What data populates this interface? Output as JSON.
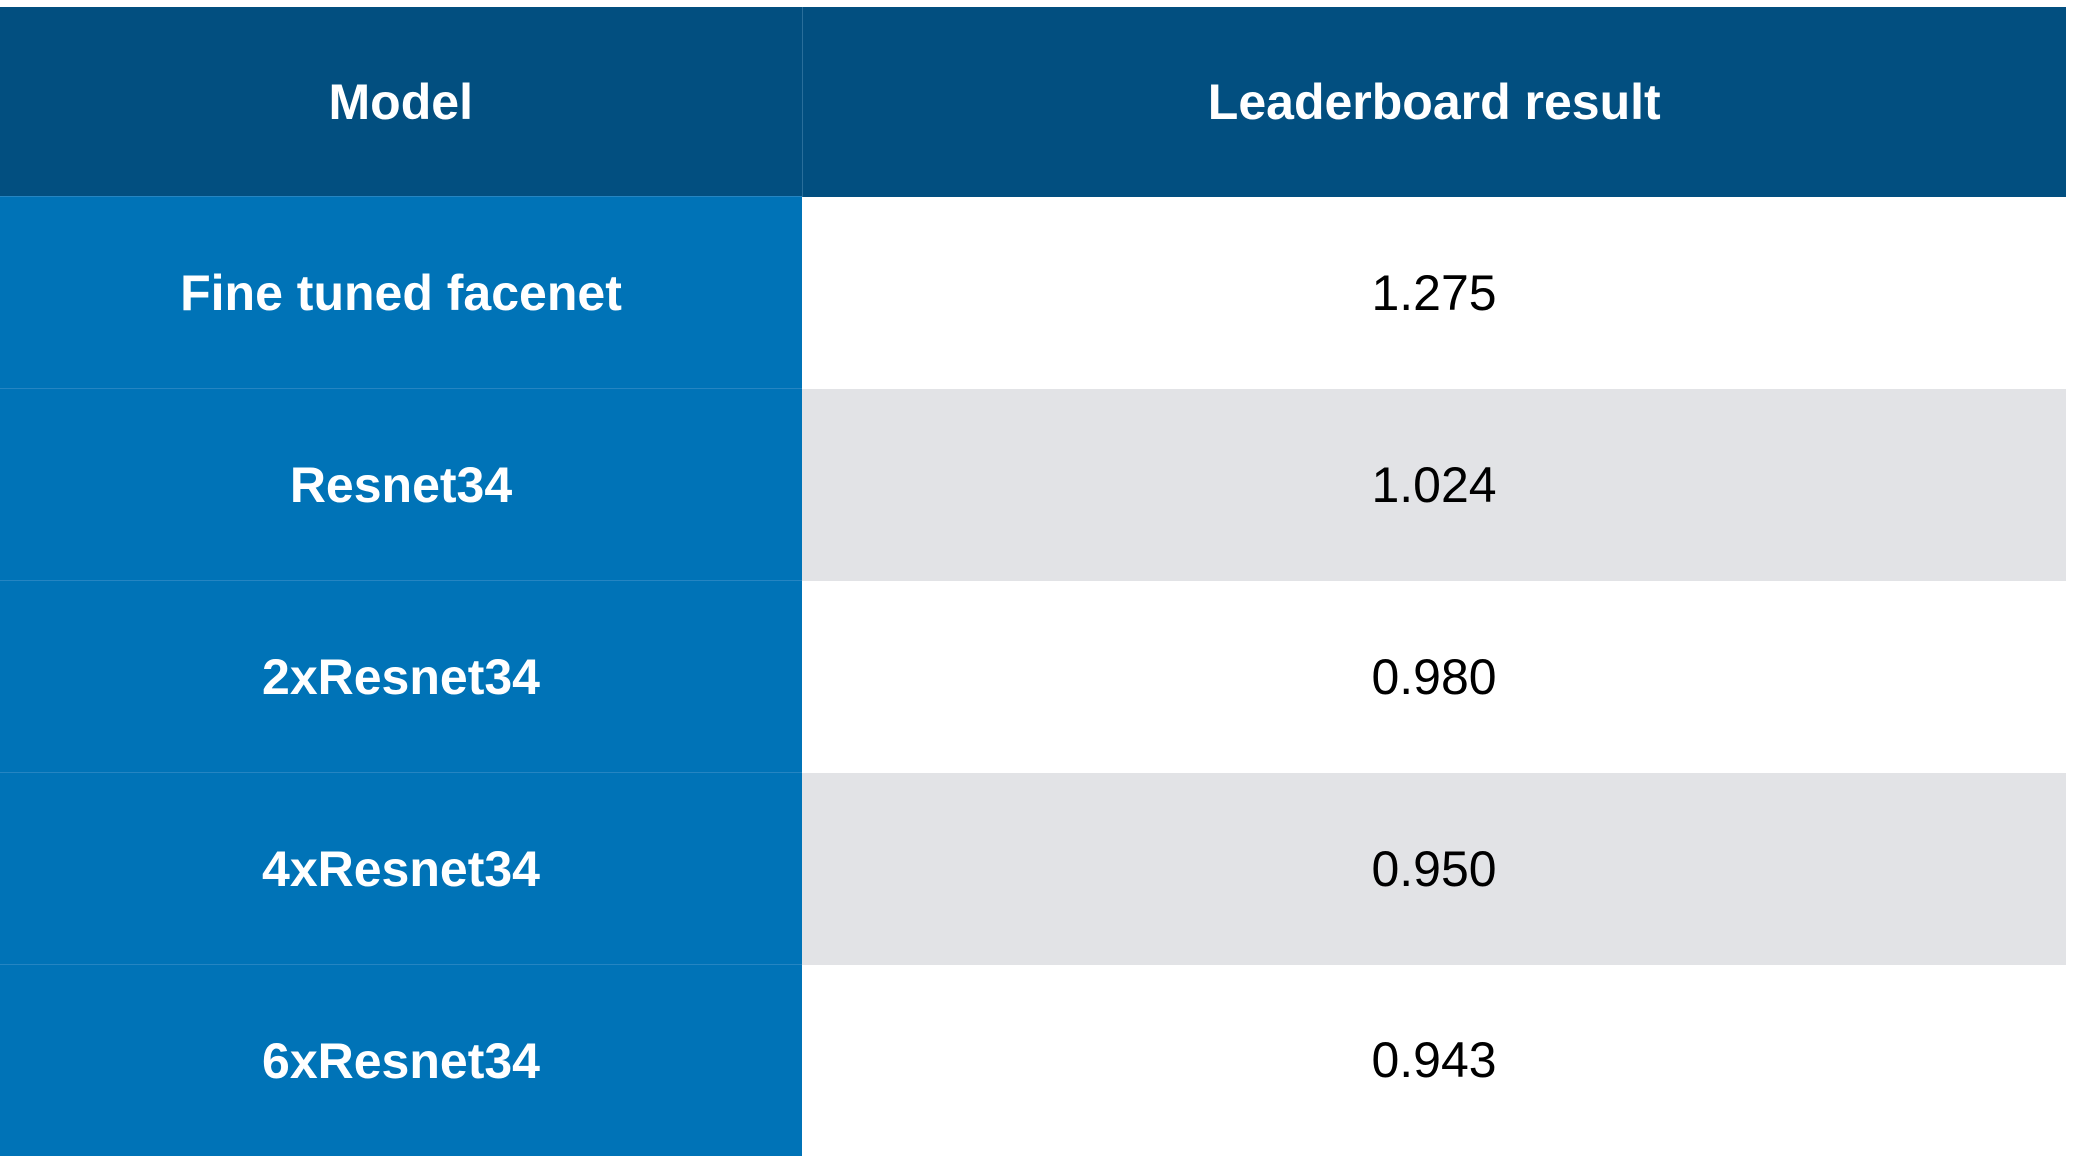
{
  "table": {
    "header": [
      "Model",
      "Leaderboard result"
    ],
    "rows": [
      [
        "Fine tuned facenet",
        "1.275"
      ],
      [
        "Resnet34",
        "1.024"
      ],
      [
        "2xResnet34",
        "0.980"
      ],
      [
        "4xResnet34",
        "0.950"
      ],
      [
        "6xResnet34",
        "0.943"
      ]
    ]
  }
}
